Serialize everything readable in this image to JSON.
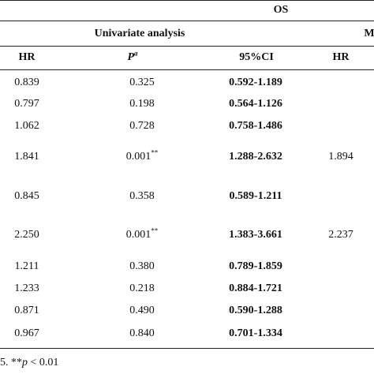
{
  "header": {
    "group_os": "OS",
    "univariate": "Univariate analysis",
    "multivariate_fragment": "M"
  },
  "columns": {
    "hr": "HR",
    "p": "P",
    "p_sup": "a",
    "ci": "95%CI",
    "hr2": "HR"
  },
  "rows": [
    {
      "hr": "0.839",
      "p": "0.325",
      "p_sup": "",
      "ci": "0.592-1.189",
      "hr2": ""
    },
    {
      "hr": "0.797",
      "p": "0.198",
      "p_sup": "",
      "ci": "0.564-1.126",
      "hr2": ""
    },
    {
      "hr": "1.062",
      "p": "0.728",
      "p_sup": "",
      "ci": "0.758-1.486",
      "hr2": ""
    },
    {
      "hr": "1.841",
      "p": "0.001",
      "p_sup": "**",
      "ci": "1.288-2.632",
      "hr2": "1.894"
    },
    {
      "hr": "0.845",
      "p": "0.358",
      "p_sup": "",
      "ci": "0.589-1.211",
      "hr2": ""
    },
    {
      "hr": "2.250",
      "p": "0.001",
      "p_sup": "**",
      "ci": "1.383-3.661",
      "hr2": "2.237"
    },
    {
      "hr": "1.211",
      "p": "0.380",
      "p_sup": "",
      "ci": "0.789-1.859",
      "hr2": ""
    },
    {
      "hr": "1.233",
      "p": "0.218",
      "p_sup": "",
      "ci": "0.884-1.721",
      "hr2": ""
    },
    {
      "hr": "0.871",
      "p": "0.490",
      "p_sup": "",
      "ci": "0.590-1.288",
      "hr2": ""
    },
    {
      "hr": "0.967",
      "p": "0.840",
      "p_sup": "",
      "ci": "0.701-1.334",
      "hr2": ""
    }
  ],
  "footnote": {
    "prefix": "5. **",
    "var": "p",
    "suffix": " < 0.01"
  }
}
